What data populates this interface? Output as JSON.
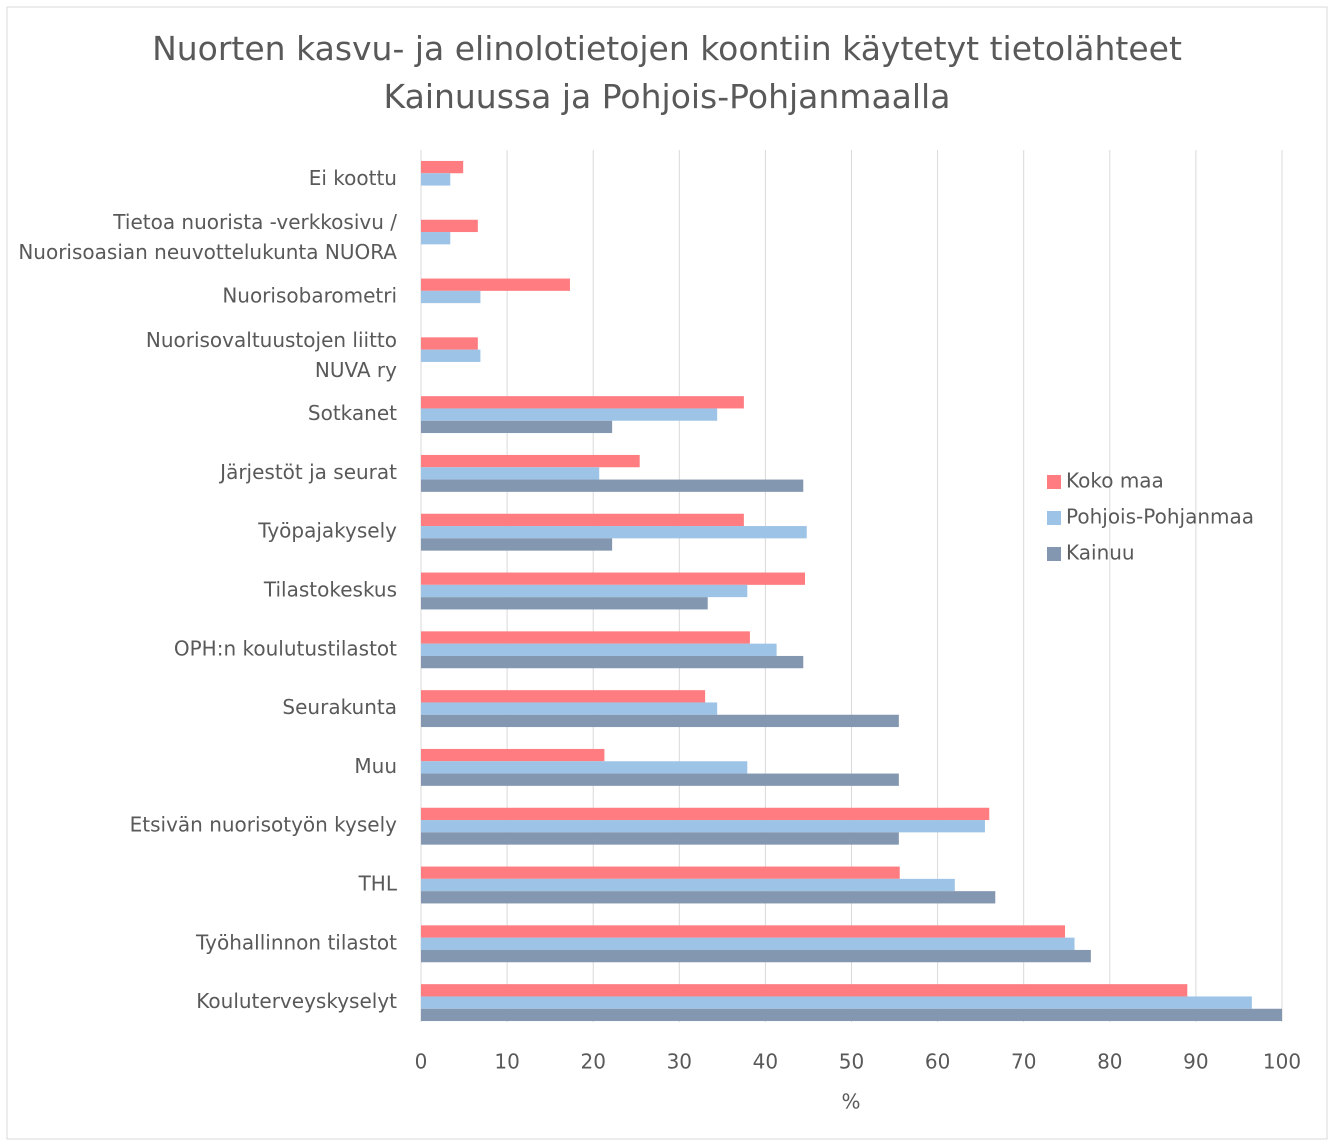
{
  "chart_data": {
    "type": "hbar",
    "title": "Nuorten kasvu- ja elinolotietojen koontiin käytetyt tietolähteet\nKainuussa ja Pohjois-Pohjanmaalla",
    "categories": [
      "Ei koottu",
      "Tietoa nuorista -verkkosivu /\nNuorisoasian neuvottelukunta NUORA",
      "Nuorisobarometri",
      "Nuorisovaltuustojen liitto\nNUVA ry",
      "Sotkanet",
      "Järjestöt ja seurat",
      "Työpajakysely",
      "Tilastokeskus",
      "OPH:n koulutustilastot",
      "Seurakunta",
      "Muu",
      "Etsivän nuorisotyön kysely",
      "THL",
      "Työhallinnon tilastot",
      "Kouluterveyskyselyt"
    ],
    "series": [
      {
        "name": "Koko maa",
        "color": "#ff7c80",
        "values": [
          4.9,
          6.6,
          17.3,
          6.6,
          37.5,
          25.4,
          37.5,
          44.6,
          38.2,
          33.0,
          21.3,
          66.0,
          55.6,
          74.8,
          89.0
        ]
      },
      {
        "name": "Pohjois-Pohjanmaa",
        "color": "#9dc3e6",
        "values": [
          3.4,
          3.4,
          6.9,
          6.9,
          34.4,
          20.7,
          44.8,
          37.9,
          41.3,
          34.4,
          37.9,
          65.5,
          62.0,
          75.9,
          96.5
        ]
      },
      {
        "name": "Kainuu",
        "color": "#8497b0",
        "values": [
          null,
          null,
          null,
          null,
          22.2,
          44.4,
          22.2,
          33.3,
          44.4,
          55.5,
          55.5,
          55.5,
          66.7,
          77.8,
          100
        ]
      }
    ],
    "xlabel": "%",
    "xlim": [
      0,
      100
    ],
    "xticks": [
      0,
      10,
      20,
      30,
      40,
      50,
      60,
      70,
      80,
      90,
      100
    ],
    "grid": true
  }
}
